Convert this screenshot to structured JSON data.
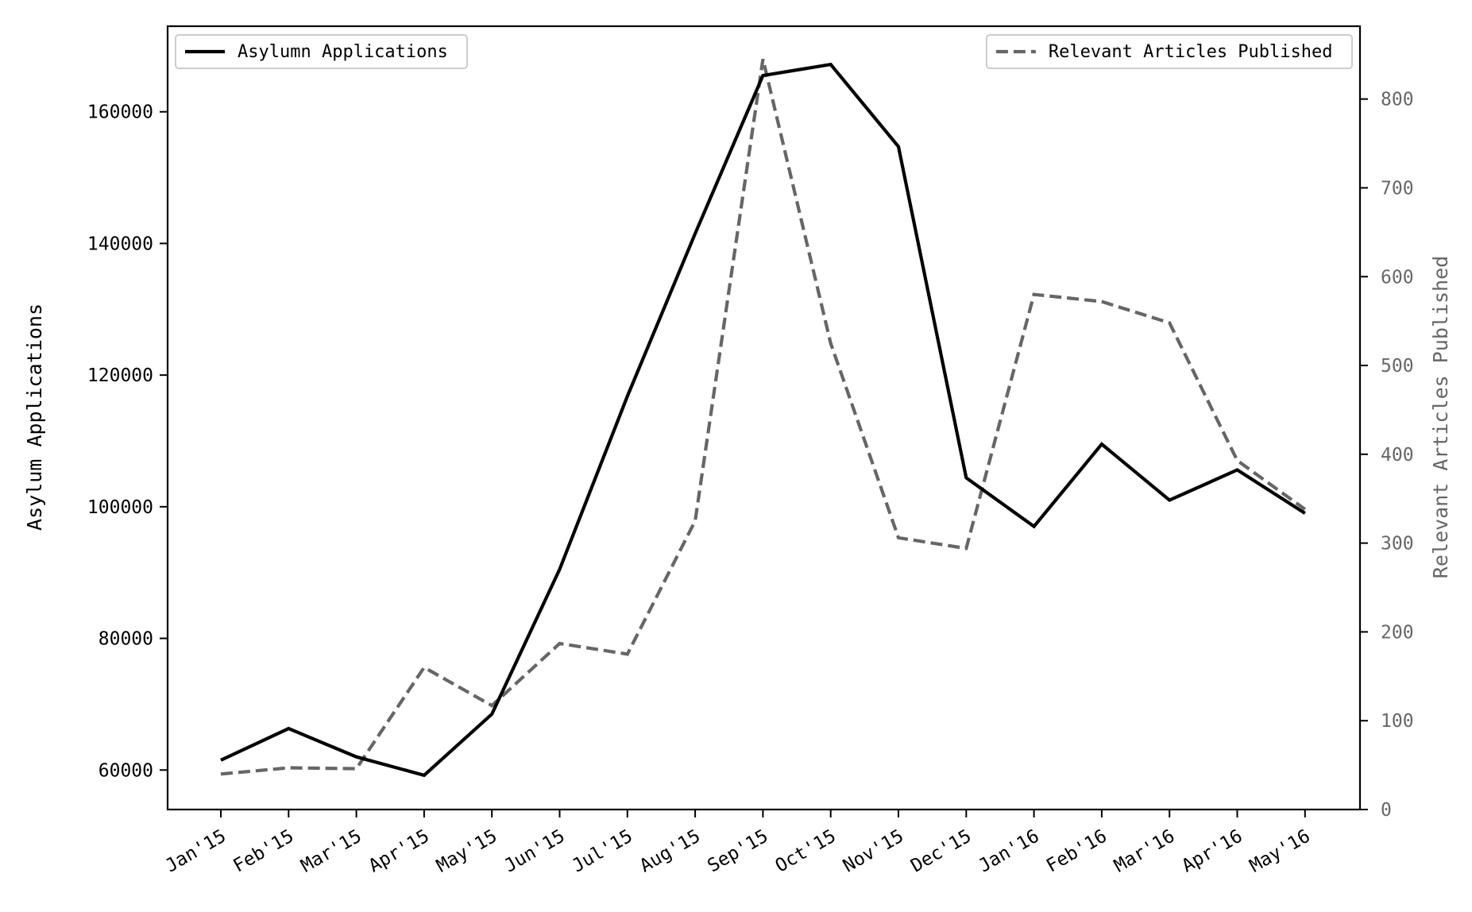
{
  "chart_data": {
    "type": "line",
    "categories": [
      "Jan'15",
      "Feb'15",
      "Mar'15",
      "Apr'15",
      "May'15",
      "Jun'15",
      "Jul'15",
      "Aug'15",
      "Sep'15",
      "Oct'15",
      "Nov'15",
      "Dec'15",
      "Jan'16",
      "Feb'16",
      "Mar'16",
      "Apr'16",
      "May'16"
    ],
    "ylabel": "Asylum Applications",
    "y2label": "Relevant Articles Published",
    "ylim": [
      54000,
      173000
    ],
    "y2lim": [
      0,
      882
    ],
    "yticks": [
      60000,
      80000,
      100000,
      120000,
      140000,
      160000
    ],
    "y2ticks": [
      0,
      100,
      200,
      300,
      400,
      500,
      600,
      700,
      800
    ],
    "grid": false,
    "series": [
      {
        "name": "Asylumn Applications",
        "axis": "left",
        "style": "solid",
        "color": "#000000",
        "values": [
          61500,
          66300,
          62000,
          59200,
          68500,
          90500,
          116800,
          141500,
          165500,
          167200,
          154700,
          104400,
          97000,
          109500,
          101000,
          105600,
          99000
        ]
      },
      {
        "name": "Relevant Articles Published",
        "axis": "right",
        "style": "dashed",
        "color": "#666666",
        "values": [
          40,
          47,
          46,
          160,
          117,
          187,
          175,
          325,
          845,
          525,
          306,
          294,
          580,
          572,
          548,
          393,
          338
        ]
      }
    ],
    "legends": [
      {
        "placement": "upper-left",
        "series": "Asylumn Applications"
      },
      {
        "placement": "upper-right",
        "series": "Relevant Articles Published"
      }
    ]
  }
}
